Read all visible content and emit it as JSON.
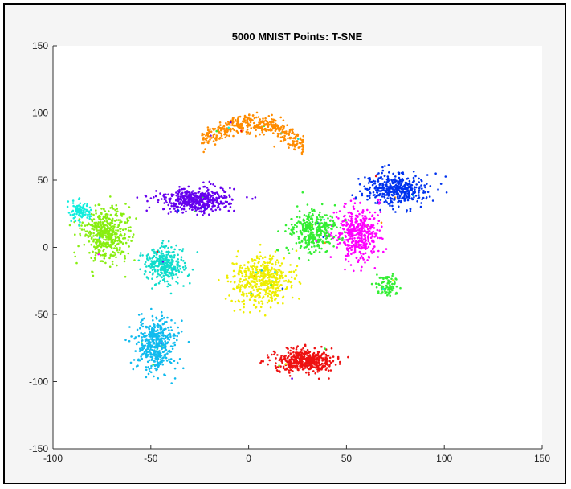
{
  "chart_data": {
    "type": "scatter",
    "title": "5000 MNIST Points: T-SNE",
    "xlabel": "",
    "ylabel": "",
    "xlim": [
      -100,
      150
    ],
    "ylim": [
      -150,
      150
    ],
    "x_ticks": [
      -100,
      -50,
      0,
      50,
      100,
      150
    ],
    "y_ticks": [
      -150,
      -100,
      -50,
      0,
      50,
      100,
      150
    ],
    "x_tick_labels": [
      "-100",
      "-50",
      "0",
      "50",
      "100",
      "150"
    ],
    "y_tick_labels": [
      "-150",
      "-100",
      "-50",
      "0",
      "50",
      "100",
      "150"
    ],
    "grid": false,
    "legend": "none",
    "point_count": 5000,
    "clusters": [
      {
        "color": "#ff8c00",
        "center": [
          2,
          86
        ],
        "spread": [
          26,
          6
        ],
        "count": 430,
        "shape": "arc"
      },
      {
        "color": "#0033ee",
        "center": [
          75,
          43
        ],
        "spread": [
          15,
          11
        ],
        "count": 420
      },
      {
        "color": "#ff00ff",
        "center": [
          56,
          10
        ],
        "spread": [
          11,
          18
        ],
        "count": 420
      },
      {
        "color": "#33ee33",
        "center": [
          33,
          12
        ],
        "spread": [
          11,
          14
        ],
        "count": 360
      },
      {
        "color": "#33ee33",
        "center": [
          71,
          -28
        ],
        "spread": [
          5,
          7
        ],
        "count": 90
      },
      {
        "color": "#6600ee",
        "center": [
          -27,
          35
        ],
        "spread": [
          17,
          8
        ],
        "count": 480
      },
      {
        "color": "#88ee11",
        "center": [
          -73,
          10
        ],
        "spread": [
          11,
          17
        ],
        "count": 470
      },
      {
        "color": "#11eedd",
        "center": [
          -86,
          27
        ],
        "spread": [
          5,
          6
        ],
        "count": 90
      },
      {
        "color": "#11ddcc",
        "center": [
          -43,
          -13
        ],
        "spread": [
          9,
          12
        ],
        "count": 330
      },
      {
        "color": "#eeee00",
        "center": [
          7,
          -25
        ],
        "spread": [
          13,
          16
        ],
        "count": 470
      },
      {
        "color": "#11bbee",
        "center": [
          -47,
          -72
        ],
        "spread": [
          9,
          17
        ],
        "count": 440
      },
      {
        "color": "#ee1111",
        "center": [
          28,
          -85
        ],
        "spread": [
          14,
          8
        ],
        "count": 460
      }
    ]
  }
}
